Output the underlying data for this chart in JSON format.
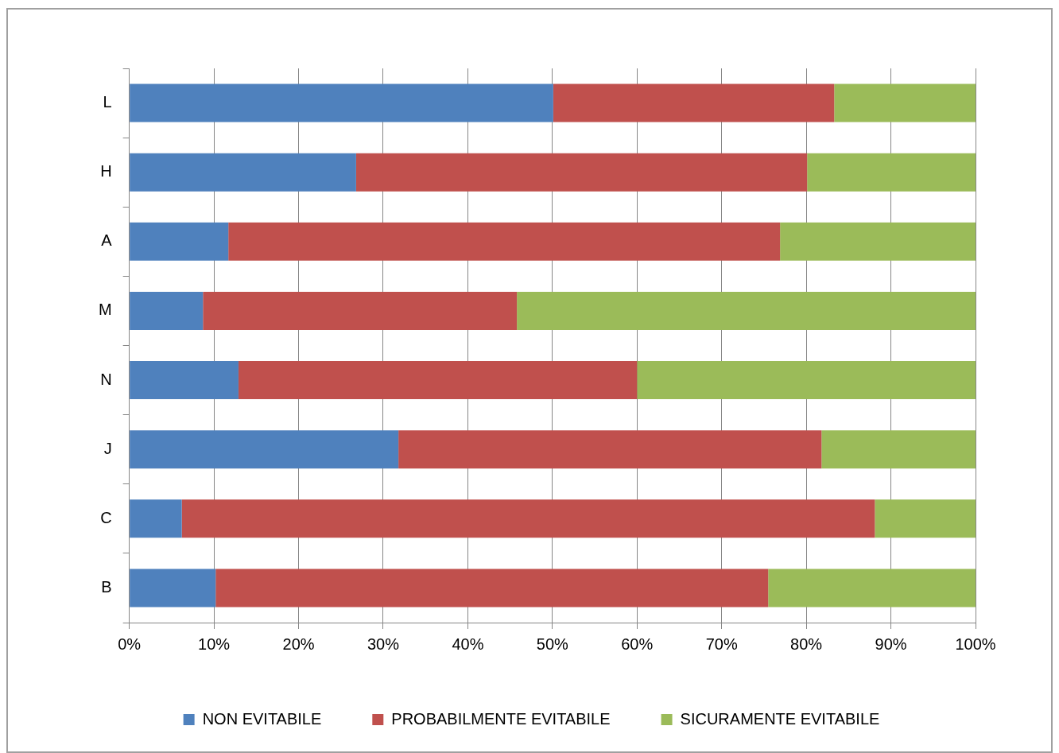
{
  "chart_data": {
    "type": "bar",
    "orientation": "horizontal",
    "stacked": true,
    "categories": [
      "L",
      "H",
      "A",
      "M",
      "N",
      "J",
      "C",
      "B"
    ],
    "series": [
      {
        "name": "NON EVITABILE",
        "color": "#4f81bd",
        "values": [
          50.1,
          26.8,
          11.7,
          8.7,
          12.9,
          31.8,
          6.2,
          10.2
        ]
      },
      {
        "name": "PROBABILMENTE EVITABILE",
        "color": "#c0504d",
        "values": [
          33.2,
          53.3,
          65.2,
          37.1,
          47.1,
          50.0,
          81.9,
          65.3
        ]
      },
      {
        "name": "SICURAMENTE EVITABILE",
        "color": "#9bbb59",
        "values": [
          16.7,
          19.9,
          23.1,
          54.2,
          40.0,
          18.2,
          11.9,
          24.5
        ]
      }
    ],
    "xlim": [
      0,
      100
    ],
    "xticks": [
      {
        "value": 0,
        "label": "0%"
      },
      {
        "value": 10,
        "label": "10%"
      },
      {
        "value": 20,
        "label": "20%"
      },
      {
        "value": 30,
        "label": "30%"
      },
      {
        "value": 40,
        "label": "40%"
      },
      {
        "value": 50,
        "label": "50%"
      },
      {
        "value": 60,
        "label": "60%"
      },
      {
        "value": 70,
        "label": "70%"
      },
      {
        "value": 80,
        "label": "80%"
      },
      {
        "value": 90,
        "label": "90%"
      },
      {
        "value": 100,
        "label": "100%"
      }
    ],
    "grid": "x",
    "legend": "bottom"
  }
}
